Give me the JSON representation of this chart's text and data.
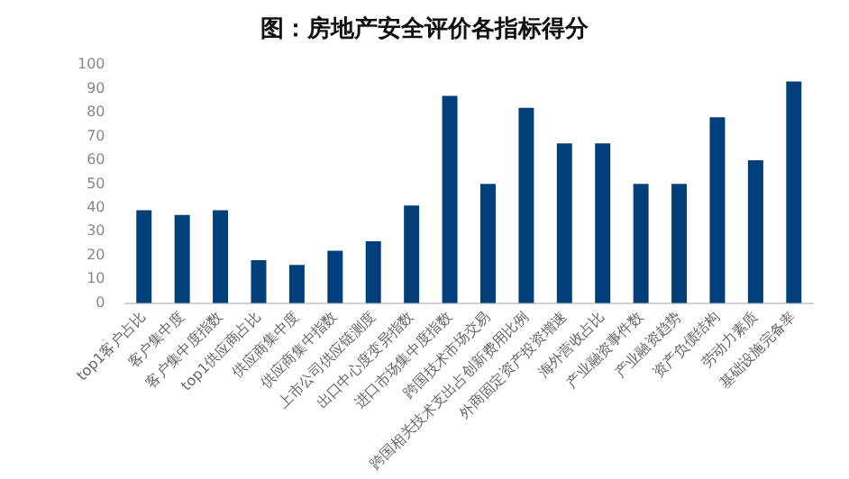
{
  "chart_data": {
    "type": "bar",
    "title": "图：房地产安全评价各指标得分",
    "categories": [
      "top1客户占比",
      "客户集中度",
      "客户集中度指数",
      "top1供应商占比",
      "供应商集中度",
      "供应商集中指数",
      "上市公司供应链测度",
      "出口中心度变异指数",
      "进口市场集中度指数",
      "跨国技术市场交易",
      "跨国相关技术支出占创新费用比例",
      "外商固定资产投资增速",
      "海外营收占比",
      "产业融资事件数",
      "产业融资趋势",
      "资产负债结构",
      "劳动力素质",
      "基础设施完备率"
    ],
    "values": [
      39,
      37,
      39,
      18,
      16,
      22,
      26,
      41,
      87,
      50,
      82,
      67,
      67,
      50,
      50,
      78,
      60,
      93
    ],
    "color": "#003f7a",
    "ylim": [
      0,
      100
    ],
    "yticks": [
      0,
      10,
      20,
      30,
      40,
      50,
      60,
      70,
      80,
      90,
      100
    ],
    "grid": false,
    "legend": false
  }
}
